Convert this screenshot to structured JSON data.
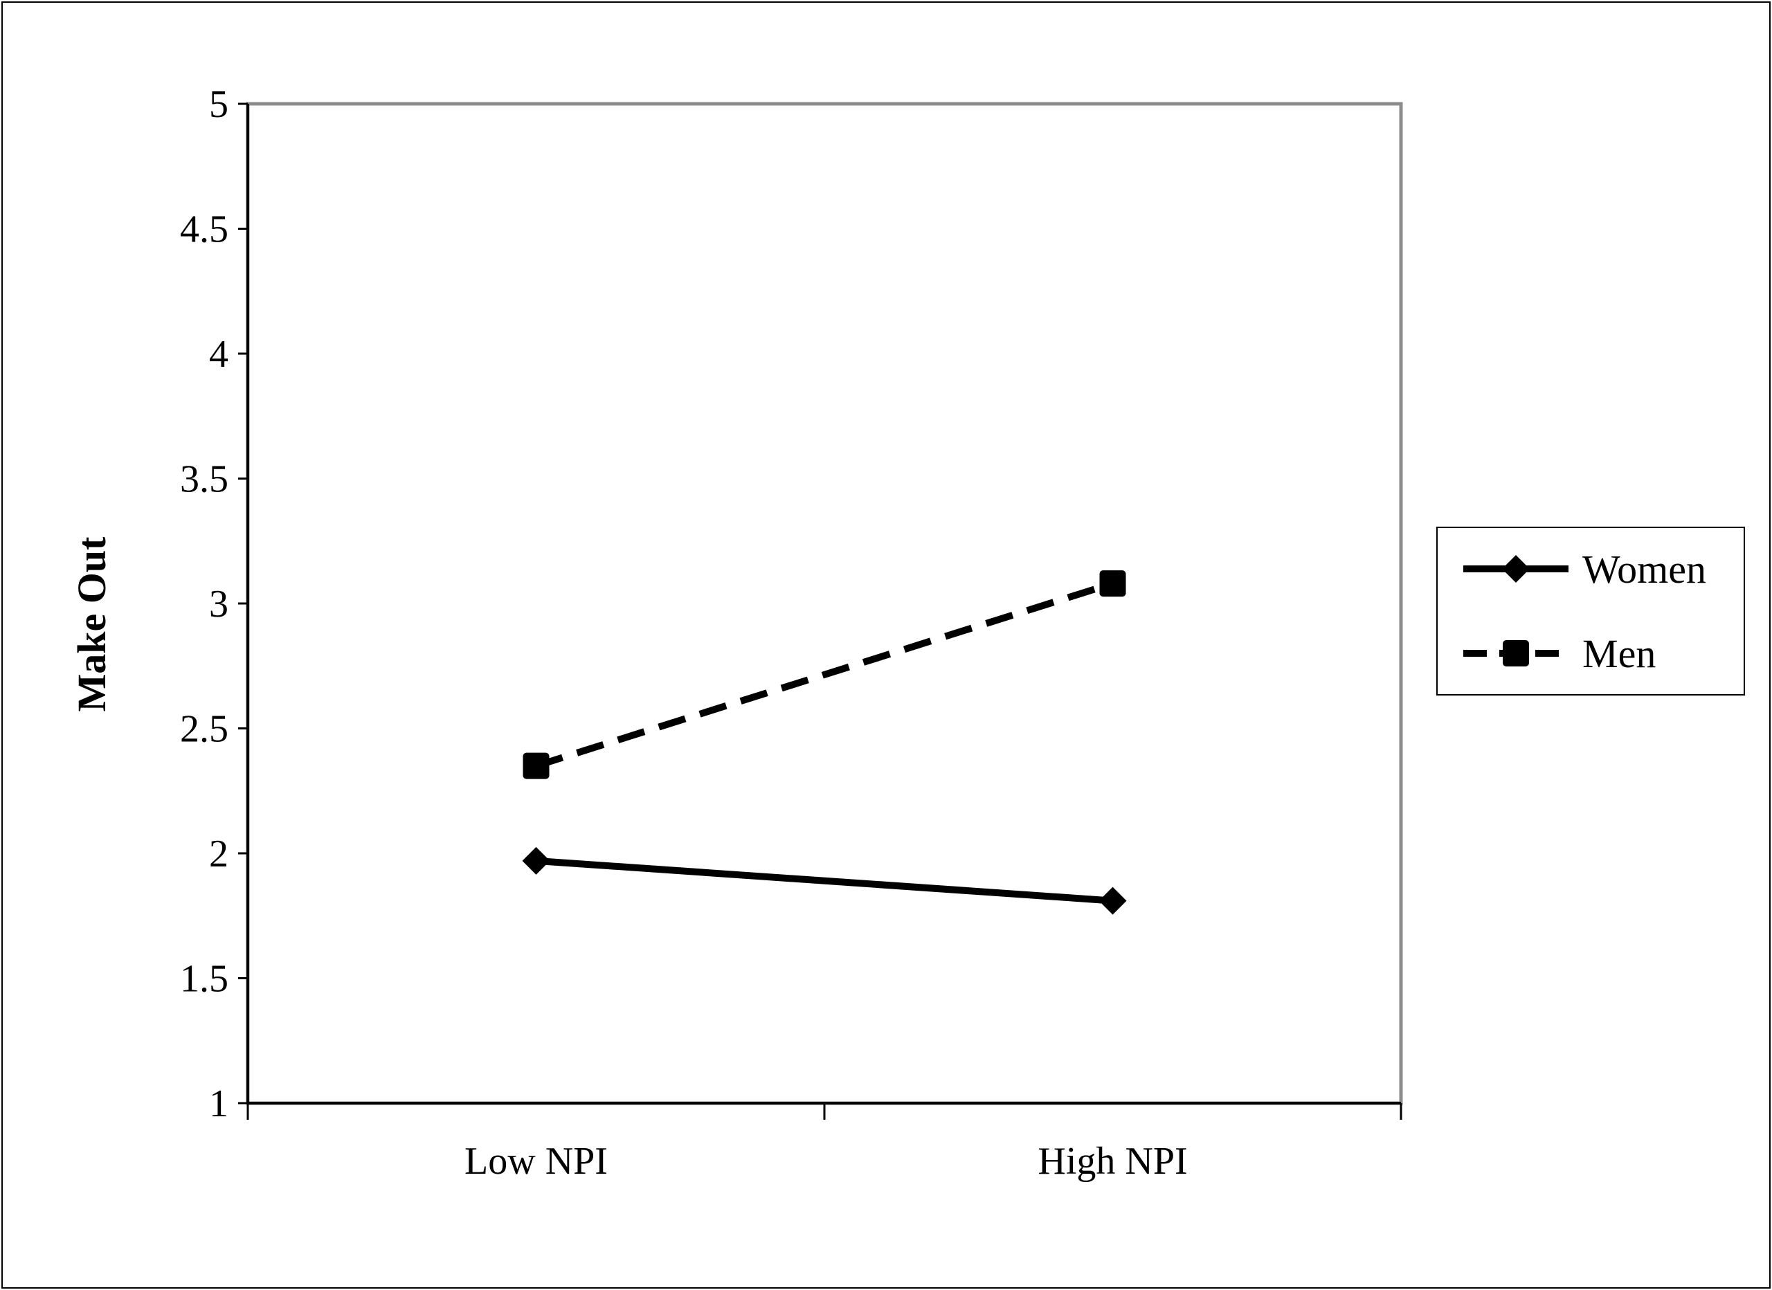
{
  "chart_data": {
    "type": "line",
    "title": "",
    "xlabel": "",
    "ylabel": "Make Out",
    "ylim": [
      1,
      5
    ],
    "yticks": [
      "1",
      "1.5",
      "2",
      "2.5",
      "3",
      "3.5",
      "4",
      "4.5",
      "5"
    ],
    "categories": [
      "Low NPI",
      "High NPI"
    ],
    "grid": false,
    "legend_position": "right",
    "series": [
      {
        "name": "Women",
        "values": [
          1.97,
          1.81
        ],
        "marker": "diamond",
        "line_style": "solid",
        "color": "#000000"
      },
      {
        "name": "Men",
        "values": [
          2.35,
          3.08
        ],
        "marker": "square",
        "line_style": "dashed",
        "color": "#000000"
      }
    ]
  }
}
